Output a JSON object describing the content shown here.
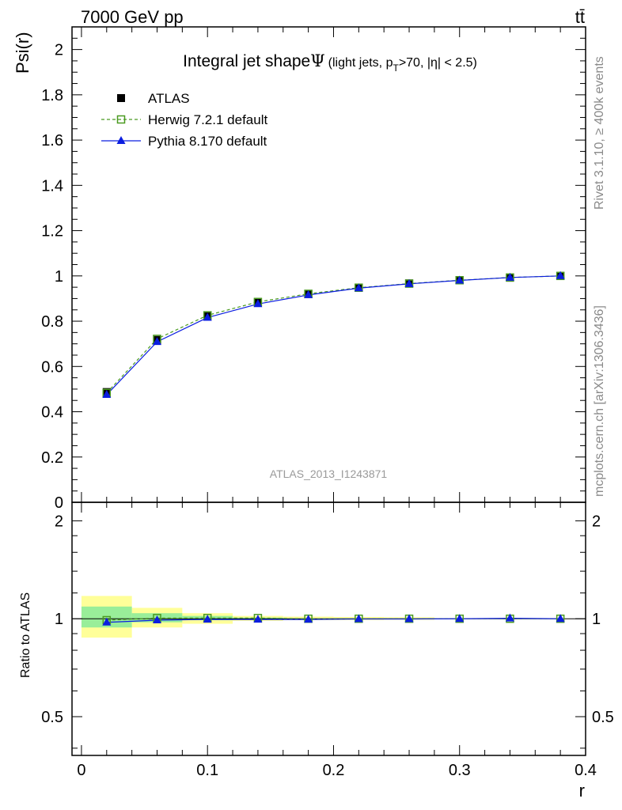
{
  "header": {
    "energy_label": "7000 GeV pp",
    "process_label": "tt̄",
    "side_rivet": "Rivet 3.1.10, ≥ 400k events",
    "side_mcplots": "mcplots.cern.ch [arXiv:1306.3436]"
  },
  "chart_data": {
    "type": "line",
    "title": "Integral jet shape",
    "title_symbol": "Ψ",
    "title_cut_prefix": "(light jets, p",
    "title_cut_sub": "T",
    "title_cut_suffix": ">70, |η| < 2.5)",
    "analysis_label": "ATLAS_2013_I1243871",
    "xlabel": "r",
    "ylabel": "Psi(r)",
    "ratio_ylabel": "Ratio to ATLAS",
    "xlim": [
      -0.0075,
      0.4
    ],
    "ylim": [
      0,
      2.1
    ],
    "ratio_ylim": [
      0.38,
      2.28
    ],
    "ratio_log": true,
    "x_ticks": [
      "0",
      "0.1",
      "0.2",
      "0.3",
      "0.4"
    ],
    "y_ticks": [
      "0",
      "0.2",
      "0.4",
      "0.6",
      "0.8",
      "1",
      "1.2",
      "1.4",
      "1.6",
      "1.8",
      "2"
    ],
    "ratio_ticks": [
      "0.5",
      "1",
      "2"
    ],
    "x": [
      0.02,
      0.06,
      0.1,
      0.14,
      0.18,
      0.22,
      0.26,
      0.3,
      0.34,
      0.38
    ],
    "bin_edges": [
      0.0,
      0.04,
      0.08,
      0.12,
      0.16,
      0.2,
      0.24,
      0.28,
      0.32,
      0.36,
      0.4
    ],
    "legend_position": "top-left",
    "series": [
      {
        "name": "ATLAS",
        "color": "#000000",
        "marker": "square",
        "values": [
          0.487,
          0.717,
          0.822,
          0.881,
          0.92,
          0.948,
          0.967,
          0.981,
          0.992,
          1.0
        ]
      },
      {
        "name": "Herwig 7.2.1 default",
        "color": "#4a9a20",
        "marker": "open-square",
        "values": [
          0.483,
          0.722,
          0.826,
          0.885,
          0.921,
          0.948,
          0.966,
          0.981,
          0.993,
          1.0
        ],
        "ratio": [
          0.99,
          1.005,
          1.005,
          1.005,
          1.0,
          1.0,
          1.0,
          1.0,
          1.0,
          1.0
        ]
      },
      {
        "name": "Pythia 8.170 default",
        "color": "#0b1de0",
        "marker": "triangle",
        "values": [
          0.475,
          0.709,
          0.816,
          0.876,
          0.916,
          0.946,
          0.965,
          0.98,
          0.993,
          1.0
        ],
        "ratio": [
          0.975,
          0.99,
          0.995,
          0.995,
          0.995,
          0.998,
          0.998,
          1.0,
          1.003,
          1.0
        ]
      }
    ],
    "ratio_band_outer": [
      [
        0.875,
        1.175
      ],
      [
        0.94,
        1.08
      ],
      [
        0.965,
        1.04
      ],
      [
        0.985,
        1.02
      ],
      [
        0.99,
        1.015
      ],
      [
        0.99,
        1.012
      ],
      [
        0.992,
        1.01
      ]
    ],
    "ratio_band_inner": [
      [
        0.94,
        1.09
      ],
      [
        0.975,
        1.04
      ],
      [
        0.99,
        1.02
      ],
      [
        0.995,
        1.008
      ]
    ]
  }
}
